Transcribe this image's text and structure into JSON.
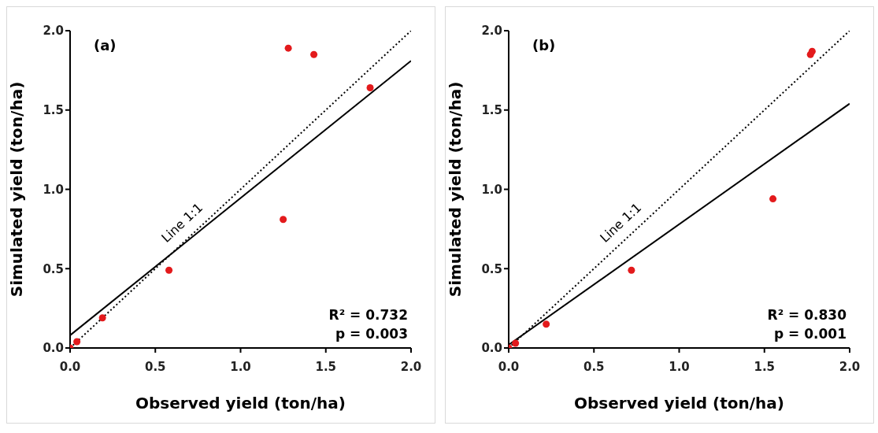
{
  "chart_data": [
    {
      "type": "scatter",
      "title": "(a)",
      "xlabel": "Observed yield (ton/ha)",
      "ylabel": "Simulated yield (ton/ha)",
      "xlim": [
        0,
        2
      ],
      "ylim": [
        0,
        2
      ],
      "xticks": [
        {
          "value": 0,
          "label": "0.0"
        },
        {
          "value": 0.5,
          "label": "0.5"
        },
        {
          "value": 1,
          "label": "1.0"
        },
        {
          "value": 1.5,
          "label": "1.5"
        },
        {
          "value": 2,
          "label": "2.0"
        }
      ],
      "yticks": [
        {
          "value": 0,
          "label": "0.0"
        },
        {
          "value": 0.5,
          "label": "0.5"
        },
        {
          "value": 1,
          "label": "1.0"
        },
        {
          "value": 1.5,
          "label": "1.5"
        },
        {
          "value": 2,
          "label": "2.0"
        }
      ],
      "grid": false,
      "legend": false,
      "series": [
        {
          "type": "scatter",
          "color": "#e31a1c",
          "marker": "circle",
          "x": [
            0,
            0.04,
            0.19,
            0.58,
            1.25,
            1.28,
            1.43,
            1.76
          ],
          "values": [
            0,
            0.04,
            0.19,
            0.49,
            0.81,
            1.89,
            1.85,
            1.64
          ]
        },
        {
          "type": "line",
          "color": "#000000",
          "line_style": "solid",
          "marker": "none",
          "x": [
            0,
            2
          ],
          "values": [
            0.08,
            1.81
          ]
        },
        {
          "type": "line",
          "name": "Line 1:1",
          "color": "#000000",
          "line_style": "dotted",
          "marker": "none",
          "x": [
            0,
            2
          ],
          "values": [
            0,
            2
          ]
        }
      ],
      "annotations": [
        "R² = 0.732",
        "p = 0.003"
      ]
    },
    {
      "type": "scatter",
      "title": "(b)",
      "xlabel": "Observed yield (ton/ha)",
      "ylabel": "Simulated yield (ton/ha)",
      "xlim": [
        0,
        2
      ],
      "ylim": [
        0,
        2
      ],
      "xticks": [
        {
          "value": 0,
          "label": "0.0"
        },
        {
          "value": 0.5,
          "label": "0.5"
        },
        {
          "value": 1,
          "label": "1.0"
        },
        {
          "value": 1.5,
          "label": "1.5"
        },
        {
          "value": 2,
          "label": "2.0"
        }
      ],
      "yticks": [
        {
          "value": 0,
          "label": "0.0"
        },
        {
          "value": 0.5,
          "label": "0.5"
        },
        {
          "value": 1,
          "label": "1.0"
        },
        {
          "value": 1.5,
          "label": "1.5"
        },
        {
          "value": 2,
          "label": "2.0"
        }
      ],
      "grid": false,
      "legend": false,
      "series": [
        {
          "type": "scatter",
          "color": "#e31a1c",
          "marker": "circle",
          "x": [
            0,
            0.04,
            0.22,
            0.72,
            1.55,
            1.77,
            1.78
          ],
          "values": [
            0,
            0.03,
            0.15,
            0.49,
            0.94,
            1.85,
            1.87
          ]
        },
        {
          "type": "line",
          "color": "#000000",
          "line_style": "solid",
          "marker": "none",
          "x": [
            0,
            2
          ],
          "values": [
            0.02,
            1.54
          ]
        },
        {
          "type": "line",
          "name": "Line 1:1",
          "color": "#000000",
          "line_style": "dotted",
          "marker": "none",
          "x": [
            0,
            2
          ],
          "values": [
            0,
            2
          ]
        }
      ],
      "annotations": [
        "R² = 0.830",
        "p = 0.001"
      ]
    }
  ]
}
